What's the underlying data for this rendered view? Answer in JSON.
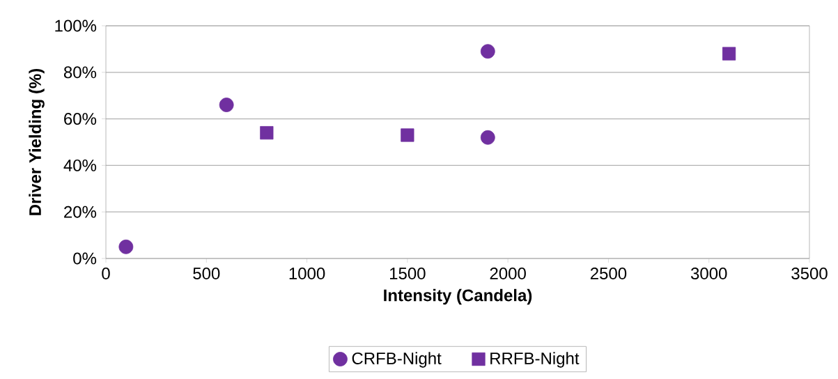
{
  "chart_data": {
    "type": "scatter",
    "xlabel": "Intensity (Candela)",
    "ylabel": "Driver Yielding (%)",
    "series": [
      {
        "name": "CRFB-Night",
        "color": "#7030a0",
        "marker": "circle",
        "x": [
          100,
          600,
          1900,
          1900
        ],
        "values": [
          5,
          66,
          89,
          52
        ]
      },
      {
        "name": "RRFB-Night",
        "color": "#7030a0",
        "marker": "square",
        "x": [
          800,
          1500,
          3100
        ],
        "values": [
          54,
          53,
          88
        ]
      }
    ],
    "xlim": [
      0,
      3500
    ],
    "xticks": [
      0,
      500,
      1000,
      1500,
      2000,
      2500,
      3000,
      3500
    ],
    "ylim": [
      0,
      100
    ],
    "yticks": [
      {
        "value": 0,
        "label": "0%"
      },
      {
        "value": 20,
        "label": "20%"
      },
      {
        "value": 40,
        "label": "40%"
      },
      {
        "value": 60,
        "label": "60%"
      },
      {
        "value": 80,
        "label": "80%"
      },
      {
        "value": 100,
        "label": "100%"
      }
    ],
    "grid": "y",
    "legend": "bottom"
  }
}
